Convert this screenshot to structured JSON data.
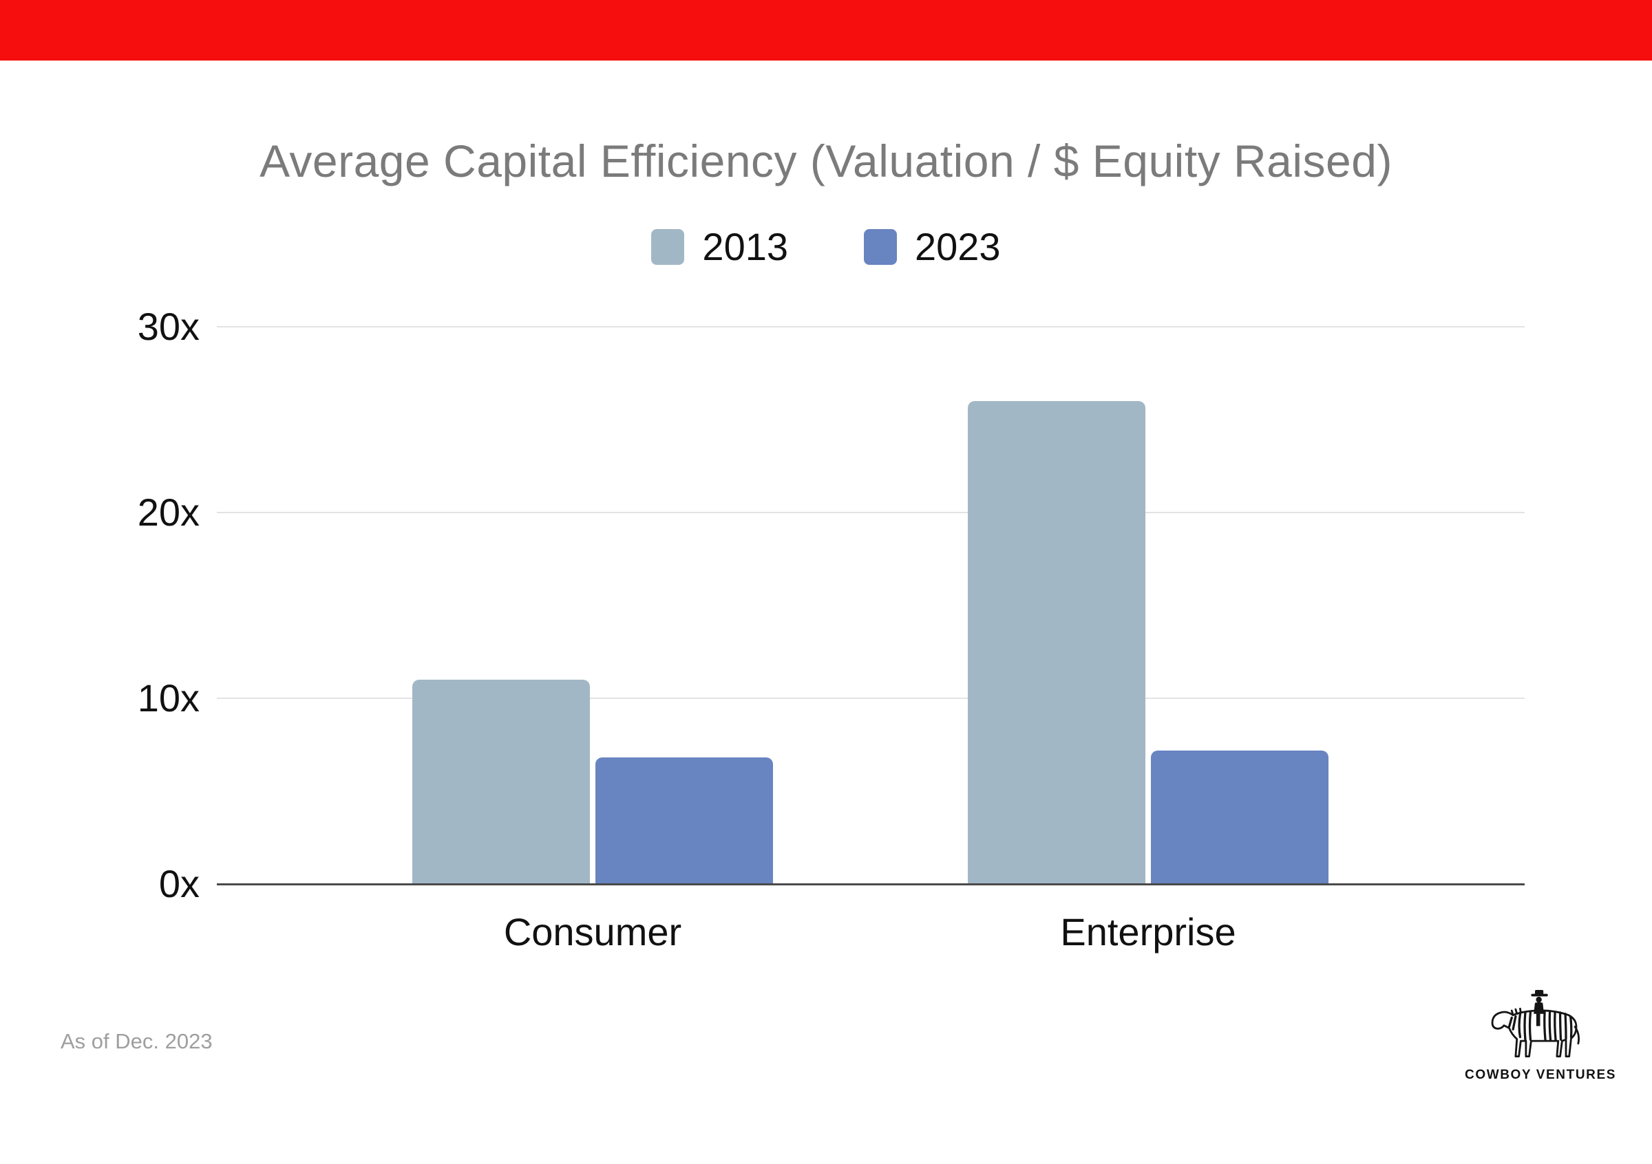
{
  "banner": {
    "color": "#f60d0d"
  },
  "chart_data": {
    "type": "bar",
    "title": "Average Capital Efficiency (Valuation / $ Equity Raised)",
    "categories": [
      "Consumer",
      "Enterprise"
    ],
    "series": [
      {
        "name": "2013",
        "color": "#a2b7c6",
        "values": [
          11,
          26
        ]
      },
      {
        "name": "2023",
        "color": "#6884c1",
        "values": [
          6.8,
          7.2
        ]
      }
    ],
    "ylim": [
      0,
      30
    ],
    "yticks": [
      {
        "value": 0,
        "label": "0x"
      },
      {
        "value": 10,
        "label": "10x"
      },
      {
        "value": 20,
        "label": "20x"
      },
      {
        "value": 30,
        "label": "30x"
      }
    ],
    "grid": "horizontal",
    "legend_position": "top-center",
    "unit_suffix": "x",
    "axis_color": "#4a4a4a",
    "gridline_color": "#e3e3e3",
    "title_color": "#7b7b7b"
  },
  "footer": {
    "note": "As of Dec. 2023",
    "brand": "COWBOY VENTURES"
  }
}
